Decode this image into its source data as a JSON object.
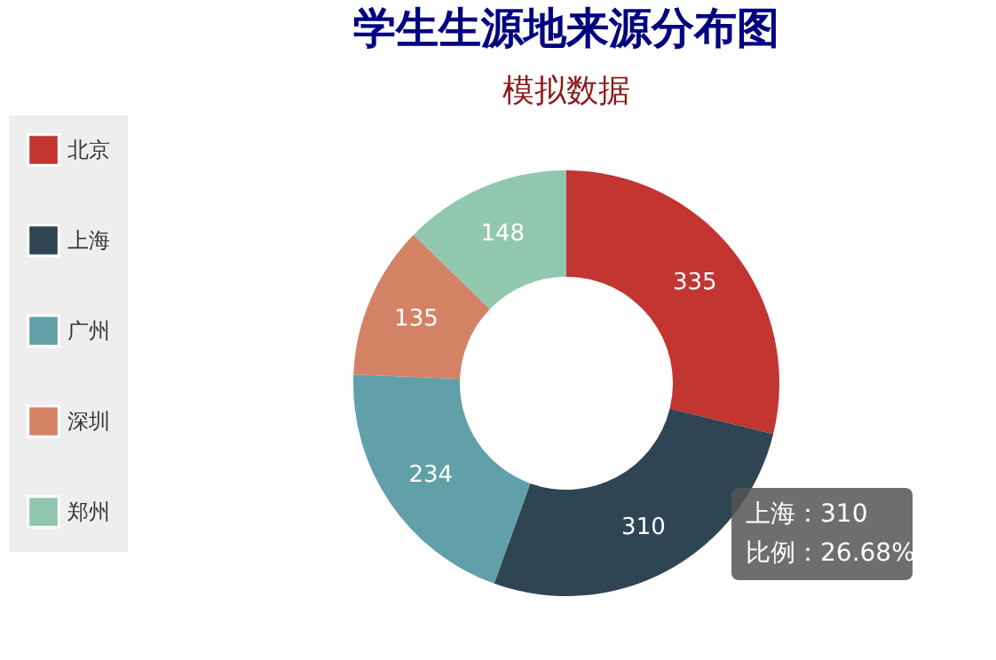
{
  "chart_data": {
    "type": "donut",
    "title": "学生生源地来源分布图",
    "subtitle": "模拟数据",
    "categories": [
      "北京",
      "上海",
      "广州",
      "深圳",
      "郑州"
    ],
    "values": [
      335,
      310,
      234,
      135,
      148
    ],
    "colors": [
      "#c23531",
      "#2f4554",
      "#61a0a8",
      "#d48265",
      "#91c7ae"
    ],
    "data_labels": true,
    "legend": "left",
    "annotations": [
      "上海：310",
      "比例：26.68%"
    ]
  }
}
